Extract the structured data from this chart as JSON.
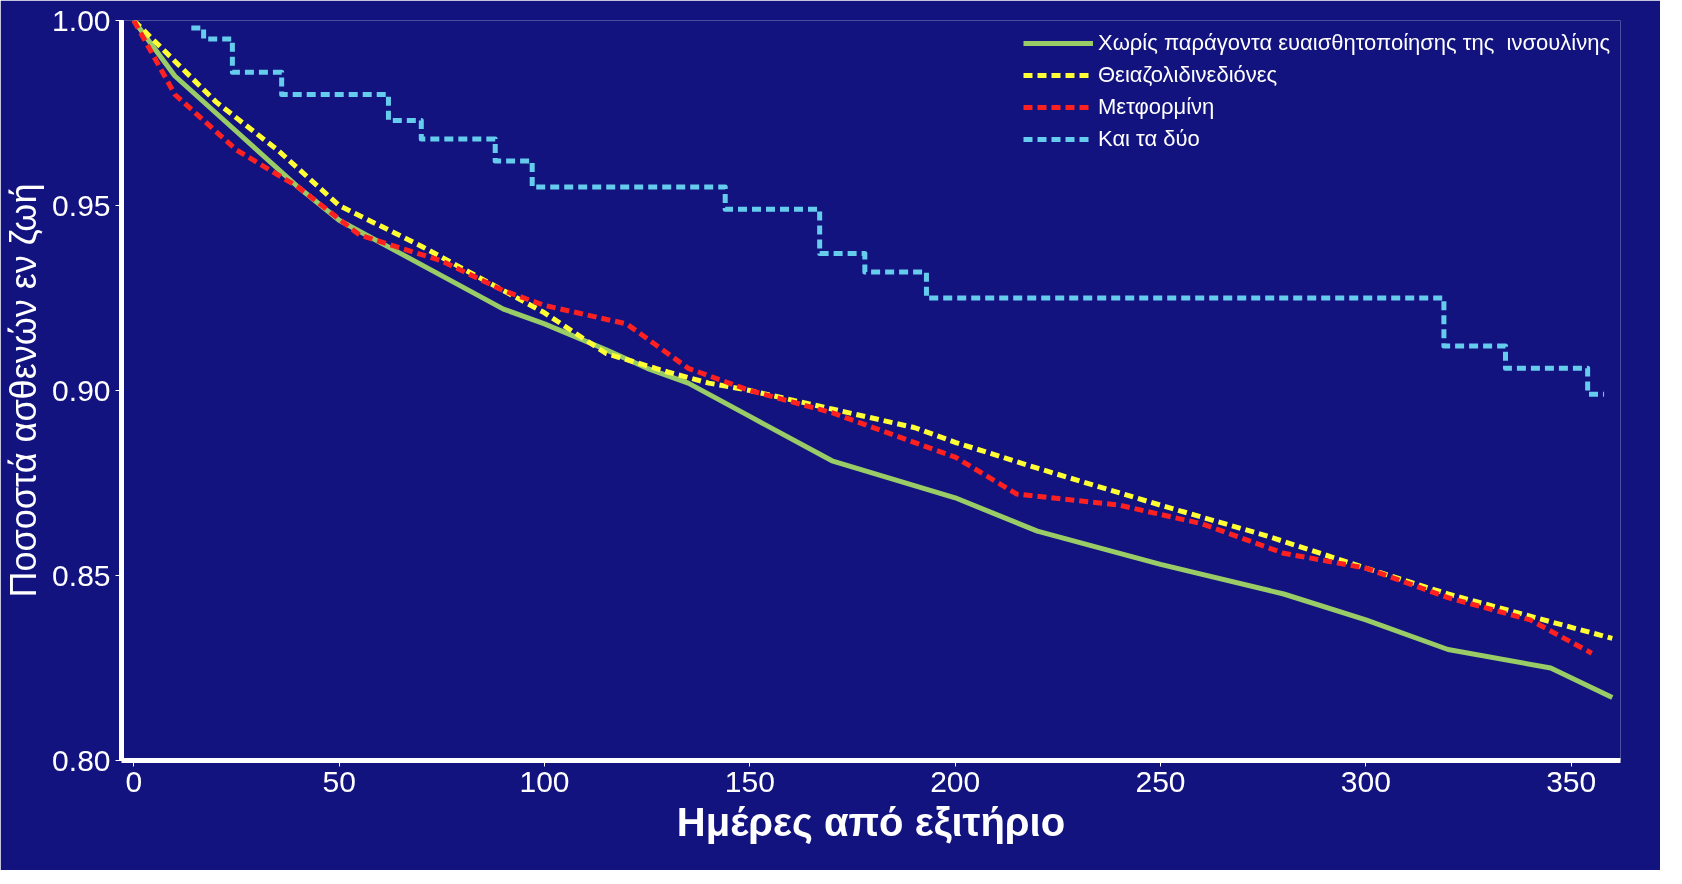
{
  "chart_data": {
    "type": "line",
    "xlabel": "Ημέρες από εξιτήριο",
    "ylabel": "Ποσοστά ασθενών εν ζωή",
    "xlim": [
      -3,
      362
    ],
    "ylim": [
      0.8,
      1.0
    ],
    "xticks": [
      0,
      50,
      100,
      150,
      200,
      250,
      300,
      350
    ],
    "yticks": [
      {
        "value": 0.8,
        "label": "0.80"
      },
      {
        "value": 0.85,
        "label": "0.85"
      },
      {
        "value": 0.9,
        "label": "0.90"
      },
      {
        "value": 0.95,
        "label": "0.95"
      },
      {
        "value": 1.0,
        "label": "1.00"
      }
    ],
    "grid": false,
    "legend": "top right",
    "series": [
      {
        "name": "Χωρίς παράγοντα ευαισθητοποίησης της  ινσουλίνης",
        "color": "#99cc66",
        "line_style": "solid",
        "x": [
          0,
          10,
          25,
          40,
          50,
          65,
          80,
          90,
          100,
          115,
          125,
          135,
          150,
          170,
          200,
          220,
          250,
          280,
          300,
          320,
          345,
          360
        ],
        "values": [
          1.0,
          0.985,
          0.97,
          0.955,
          0.946,
          0.937,
          0.928,
          0.922,
          0.918,
          0.911,
          0.906,
          0.902,
          0.893,
          0.881,
          0.871,
          0.862,
          0.853,
          0.845,
          0.838,
          0.83,
          0.825,
          0.817
        ]
      },
      {
        "name": "Θειαζολιδινεδιόνες",
        "color": "#ffff33",
        "line_style": "dashed",
        "x": [
          0,
          20,
          35,
          50,
          70,
          90,
          100,
          115,
          130,
          140,
          150,
          170,
          190,
          200,
          220,
          250,
          275,
          300,
          320,
          340,
          360
        ],
        "values": [
          1.0,
          0.978,
          0.965,
          0.95,
          0.939,
          0.927,
          0.921,
          0.91,
          0.905,
          0.902,
          0.9,
          0.895,
          0.89,
          0.886,
          0.879,
          0.869,
          0.861,
          0.852,
          0.845,
          0.839,
          0.833
        ]
      },
      {
        "name": "Μετφορμίνη",
        "color": "#ff2020",
        "line_style": "dashed",
        "x": [
          0,
          10,
          25,
          40,
          55,
          75,
          90,
          100,
          120,
          135,
          150,
          170,
          190,
          200,
          215,
          240,
          260,
          280,
          300,
          320,
          340,
          355
        ],
        "values": [
          1.0,
          0.98,
          0.965,
          0.955,
          0.942,
          0.935,
          0.927,
          0.923,
          0.918,
          0.906,
          0.9,
          0.894,
          0.886,
          0.882,
          0.872,
          0.869,
          0.864,
          0.856,
          0.852,
          0.844,
          0.838,
          0.829
        ]
      },
      {
        "name": "Και τα δύο",
        "type": "step",
        "color": "#66ccee",
        "line_style": "dashed",
        "x": [
          14,
          17,
          24,
          36,
          62,
          70,
          88,
          97,
          144,
          167,
          178,
          193,
          319,
          334,
          354,
          358
        ],
        "values": [
          0.998,
          0.995,
          0.986,
          0.98,
          0.973,
          0.968,
          0.962,
          0.955,
          0.949,
          0.937,
          0.932,
          0.925,
          0.912,
          0.906,
          0.899,
          0.899
        ]
      }
    ]
  }
}
